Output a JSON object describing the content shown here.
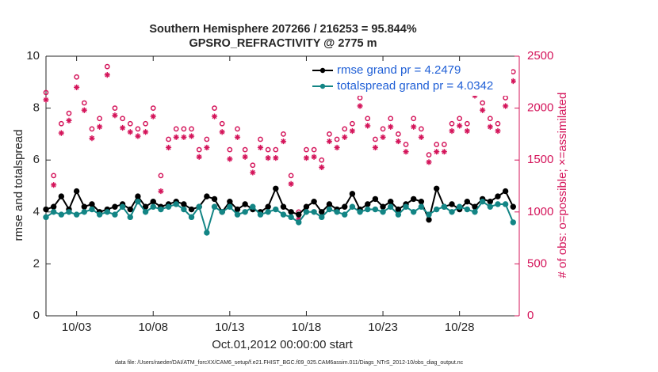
{
  "chart_data": {
    "type": "line",
    "title": [
      "Southern Hemisphere 207266 / 216253 = 95.844%",
      "GPSRO_REFRACTIVITY @ 2775 m"
    ],
    "xlabel": "Oct.01,2012 00:00:00 start",
    "ylabel": "rmse and totalspread",
    "y2label": "# of obs: o=possible; ×=assimilated",
    "footnote": "data file: /Users/raeder/DAI/ATM_forcXX/CAM6_setup/f.e21.FHIST_BGC.f09_025.CAM6assim.011/Diags_NTrS_2012-10/obs_diag_output.nc",
    "x": [
      1,
      1.5,
      2,
      2.5,
      3,
      3.5,
      4,
      4.5,
      5,
      5.5,
      6,
      6.5,
      7,
      7.5,
      8,
      8.5,
      9,
      9.5,
      10,
      10.5,
      11,
      11.5,
      12,
      12.5,
      13,
      13.5,
      14,
      14.5,
      15,
      15.5,
      16,
      16.5,
      17,
      17.5,
      18,
      18.5,
      19,
      19.5,
      20,
      20.5,
      21,
      21.5,
      22,
      22.5,
      23,
      23.5,
      24,
      24.5,
      25,
      25.5,
      26,
      26.5,
      27,
      27.5,
      28,
      28.5,
      29,
      29.5,
      30,
      30.5,
      31,
      31.5
    ],
    "xlim": [
      1,
      31.9
    ],
    "xticks": [
      {
        "value": 3,
        "label": "10/03"
      },
      {
        "value": 8,
        "label": "10/08"
      },
      {
        "value": 13,
        "label": "10/13"
      },
      {
        "value": 18,
        "label": "10/18"
      },
      {
        "value": 23,
        "label": "10/23"
      },
      {
        "value": 28,
        "label": "10/28"
      }
    ],
    "ylim": [
      0,
      10
    ],
    "yticks": [
      0,
      2,
      4,
      6,
      8,
      10
    ],
    "y2lim": [
      0,
      2500
    ],
    "y2ticks": [
      0,
      500,
      1000,
      1500,
      2000,
      2500
    ],
    "legend": "upper right",
    "series": [
      {
        "name": "rmse grand pr = 4.2479",
        "color": "#000000",
        "marker": "circle",
        "line": true,
        "values": [
          4.1,
          4.2,
          4.6,
          4.1,
          4.8,
          4.2,
          4.3,
          4.0,
          4.1,
          4.2,
          4.3,
          4.1,
          4.6,
          4.2,
          4.4,
          4.2,
          4.3,
          4.4,
          4.3,
          4.1,
          4.2,
          4.6,
          4.5,
          4.0,
          4.4,
          4.1,
          4.3,
          4.1,
          4.0,
          4.2,
          4.9,
          4.2,
          4.0,
          3.9,
          4.2,
          4.4,
          4.0,
          4.3,
          4.1,
          4.2,
          4.7,
          4.1,
          4.3,
          4.5,
          4.2,
          4.4,
          4.1,
          4.3,
          4.5,
          4.4,
          3.7,
          4.9,
          4.2,
          4.3,
          4.1,
          4.4,
          4.2,
          4.5,
          4.4,
          4.6,
          4.8,
          4.2
        ]
      },
      {
        "name": "totalspread grand pr = 4.0342",
        "color": "#138585",
        "marker": "circle",
        "line": true,
        "values": [
          3.8,
          4.0,
          3.9,
          4.0,
          3.9,
          4.0,
          4.1,
          3.9,
          4.0,
          3.9,
          4.2,
          3.8,
          4.4,
          4.0,
          4.2,
          4.1,
          4.2,
          4.3,
          4.1,
          3.8,
          4.2,
          3.2,
          4.2,
          4.0,
          4.2,
          3.9,
          4.0,
          4.2,
          3.9,
          4.0,
          4.1,
          3.9,
          3.8,
          3.6,
          4.0,
          4.0,
          3.8,
          4.1,
          4.0,
          3.9,
          4.2,
          4.0,
          4.1,
          4.1,
          4.0,
          4.2,
          3.9,
          4.2,
          4.0,
          4.2,
          3.9,
          4.1,
          4.2,
          4.0,
          4.2,
          4.1,
          4.0,
          4.4,
          4.2,
          4.3,
          4.3,
          3.6
        ]
      },
      {
        "color": "#d4145a",
        "marker": "open-circle",
        "axis": "y2",
        "values": [
          2150,
          1350,
          1850,
          1950,
          2300,
          2050,
          1800,
          1900,
          2400,
          2000,
          1900,
          1850,
          1800,
          1850,
          2000,
          1350,
          1700,
          1800,
          1800,
          1800,
          1600,
          1700,
          2000,
          1850,
          1600,
          1800,
          1600,
          1450,
          1700,
          1600,
          1600,
          1750,
          1350,
          1000,
          1600,
          1600,
          1500,
          1750,
          1700,
          1800,
          1850,
          2100,
          1900,
          1700,
          1800,
          1900,
          1750,
          1650,
          1900,
          1800,
          1550,
          1650,
          1650,
          1850,
          1900,
          1850,
          2200,
          2050,
          1900,
          1850,
          2100,
          2350
        ]
      },
      {
        "color": "#d4145a",
        "marker": "asterisk",
        "axis": "y2",
        "values": [
          2080,
          1260,
          1760,
          1880,
          2200,
          1980,
          1710,
          1820,
          2320,
          1930,
          1810,
          1770,
          1730,
          1770,
          1920,
          1200,
          1620,
          1720,
          1720,
          1730,
          1530,
          1620,
          1920,
          1770,
          1510,
          1720,
          1530,
          1380,
          1620,
          1520,
          1520,
          1680,
          1270,
          930,
          1520,
          1530,
          1430,
          1680,
          1620,
          1720,
          1780,
          2020,
          1830,
          1620,
          1720,
          1820,
          1680,
          1580,
          1820,
          1720,
          1480,
          1580,
          1580,
          1780,
          1830,
          1780,
          2120,
          1980,
          1820,
          1780,
          2020,
          2260
        ]
      }
    ]
  }
}
